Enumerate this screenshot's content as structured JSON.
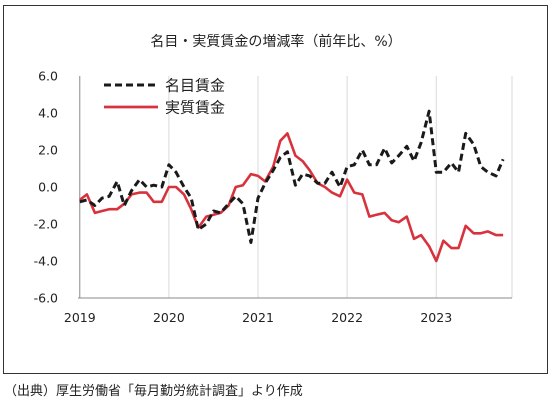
{
  "chart_data": {
    "type": "line",
    "title": "名目・実質賃金の増減率（前年比、%）",
    "xlabel": "",
    "ylabel": "",
    "ylim": [
      -6.0,
      6.0
    ],
    "yticks": [
      "6.0",
      "4.0",
      "2.0",
      "0.0",
      "-2.0",
      "-4.0",
      "-6.0"
    ],
    "ytick_values": [
      6,
      4,
      2,
      0,
      -2,
      -4,
      -6
    ],
    "xticks": [
      "2019",
      "2020",
      "2021",
      "2022",
      "2023"
    ],
    "xtick_values": [
      2019,
      2020,
      2021,
      2022,
      2023
    ],
    "grid": "vertical",
    "legend": "top-left",
    "series": [
      {
        "name": "名目賃金",
        "style": "dashed",
        "color": "#1a1a1a",
        "points": [
          [
            2019.0,
            -0.8
          ],
          [
            2019.08,
            -0.7
          ],
          [
            2019.17,
            -1.0
          ],
          [
            2019.25,
            -0.6
          ],
          [
            2019.33,
            -0.5
          ],
          [
            2019.42,
            0.3
          ],
          [
            2019.5,
            -1.0
          ],
          [
            2019.58,
            -0.2
          ],
          [
            2019.67,
            0.4
          ],
          [
            2019.75,
            0.0
          ],
          [
            2019.83,
            0.1
          ],
          [
            2019.92,
            0.0
          ],
          [
            2020.0,
            1.2
          ],
          [
            2020.08,
            0.8
          ],
          [
            2020.17,
            0.0
          ],
          [
            2020.25,
            -0.6
          ],
          [
            2020.33,
            -2.3
          ],
          [
            2020.42,
            -2.0
          ],
          [
            2020.5,
            -1.3
          ],
          [
            2020.58,
            -1.4
          ],
          [
            2020.67,
            -0.9
          ],
          [
            2020.75,
            -0.5
          ],
          [
            2020.83,
            -0.9
          ],
          [
            2020.92,
            -3.0
          ],
          [
            2021.0,
            -0.6
          ],
          [
            2021.08,
            0.2
          ],
          [
            2021.17,
            0.9
          ],
          [
            2021.25,
            1.6
          ],
          [
            2021.33,
            1.9
          ],
          [
            2021.42,
            0.1
          ],
          [
            2021.5,
            0.7
          ],
          [
            2021.58,
            0.6
          ],
          [
            2021.67,
            0.2
          ],
          [
            2021.75,
            0.2
          ],
          [
            2021.83,
            0.8
          ],
          [
            2021.92,
            0.0
          ],
          [
            2022.0,
            1.1
          ],
          [
            2022.08,
            1.2
          ],
          [
            2022.17,
            2.0
          ],
          [
            2022.25,
            1.2
          ],
          [
            2022.33,
            1.2
          ],
          [
            2022.42,
            2.1
          ],
          [
            2022.5,
            1.3
          ],
          [
            2022.58,
            1.7
          ],
          [
            2022.67,
            2.2
          ],
          [
            2022.75,
            1.4
          ],
          [
            2022.83,
            2.4
          ],
          [
            2022.92,
            4.1
          ],
          [
            2023.0,
            0.8
          ],
          [
            2023.08,
            0.8
          ],
          [
            2023.17,
            1.3
          ],
          [
            2023.25,
            0.8
          ],
          [
            2023.33,
            2.9
          ],
          [
            2023.42,
            2.3
          ],
          [
            2023.5,
            1.1
          ],
          [
            2023.58,
            0.8
          ],
          [
            2023.67,
            0.6
          ],
          [
            2023.75,
            1.5
          ]
        ]
      },
      {
        "name": "実質賃金",
        "style": "solid",
        "color": "#d8323c",
        "points": [
          [
            2019.0,
            -0.7
          ],
          [
            2019.08,
            -0.4
          ],
          [
            2019.17,
            -1.4
          ],
          [
            2019.25,
            -1.3
          ],
          [
            2019.33,
            -1.2
          ],
          [
            2019.42,
            -1.2
          ],
          [
            2019.5,
            -0.9
          ],
          [
            2019.58,
            -0.4
          ],
          [
            2019.67,
            -0.3
          ],
          [
            2019.75,
            -0.3
          ],
          [
            2019.83,
            -0.8
          ],
          [
            2019.92,
            -0.8
          ],
          [
            2020.0,
            0.0
          ],
          [
            2020.08,
            0.0
          ],
          [
            2020.17,
            -0.4
          ],
          [
            2020.25,
            -1.2
          ],
          [
            2020.33,
            -2.2
          ],
          [
            2020.42,
            -1.6
          ],
          [
            2020.5,
            -1.5
          ],
          [
            2020.58,
            -1.4
          ],
          [
            2020.67,
            -1.0
          ],
          [
            2020.75,
            0.0
          ],
          [
            2020.83,
            0.1
          ],
          [
            2020.92,
            0.7
          ],
          [
            2021.0,
            0.6
          ],
          [
            2021.08,
            0.3
          ],
          [
            2021.17,
            1.1
          ],
          [
            2021.25,
            2.5
          ],
          [
            2021.33,
            2.9
          ],
          [
            2021.42,
            1.7
          ],
          [
            2021.5,
            1.4
          ],
          [
            2021.58,
            0.9
          ],
          [
            2021.67,
            0.2
          ],
          [
            2021.75,
            0.0
          ],
          [
            2021.83,
            -0.3
          ],
          [
            2021.92,
            -0.5
          ],
          [
            2022.0,
            0.4
          ],
          [
            2022.08,
            -0.3
          ],
          [
            2022.17,
            -0.4
          ],
          [
            2022.25,
            -1.6
          ],
          [
            2022.33,
            -1.5
          ],
          [
            2022.42,
            -1.4
          ],
          [
            2022.5,
            -1.8
          ],
          [
            2022.58,
            -1.9
          ],
          [
            2022.67,
            -1.6
          ],
          [
            2022.75,
            -2.8
          ],
          [
            2022.83,
            -2.6
          ],
          [
            2022.92,
            -3.2
          ],
          [
            2023.0,
            -4.0
          ],
          [
            2023.08,
            -2.9
          ],
          [
            2023.17,
            -3.3
          ],
          [
            2023.25,
            -3.3
          ],
          [
            2023.33,
            -2.1
          ],
          [
            2023.42,
            -2.5
          ],
          [
            2023.5,
            -2.5
          ],
          [
            2023.58,
            -2.4
          ],
          [
            2023.67,
            -2.6
          ],
          [
            2023.75,
            -2.6
          ]
        ]
      }
    ]
  },
  "source_note": "（出典）厚生労働省「毎月勤労統計調査」より作成"
}
